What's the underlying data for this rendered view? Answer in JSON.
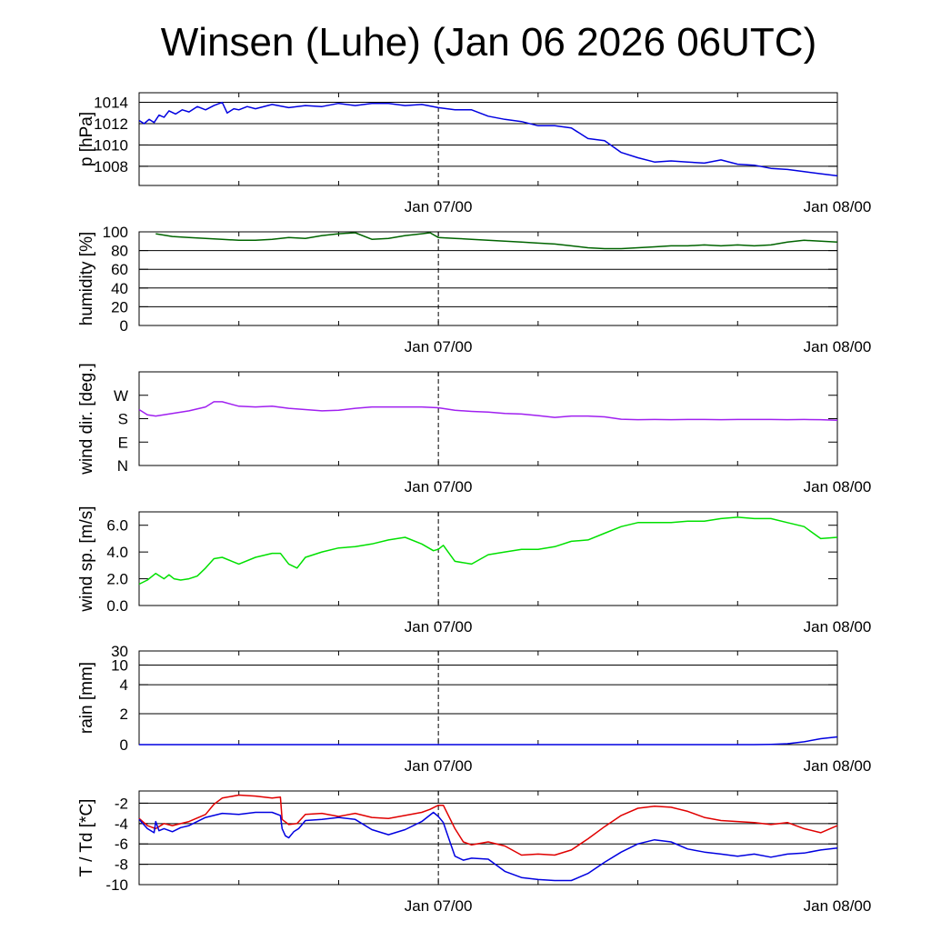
{
  "title": "Winsen (Luhe) (Jan 06 2026 06UTC)",
  "chart_data": [
    {
      "type": "line",
      "ylabel": "p [hPa]",
      "ylim": [
        1006.2,
        1014.9
      ],
      "yticks": [
        {
          "value": 1008,
          "label": "1008"
        },
        {
          "value": 1010,
          "label": "1010"
        },
        {
          "value": 1012,
          "label": "1012"
        },
        {
          "value": 1014,
          "label": "1014"
        }
      ],
      "grid_values": [
        1008,
        1010,
        1012,
        1014
      ],
      "xlim": [
        0,
        42
      ],
      "xticks": [
        {
          "value": 18,
          "label": "Jan 07/00"
        },
        {
          "value": 42,
          "label": "Jan 08/00"
        }
      ],
      "vline": 18,
      "series": [
        {
          "name": "pressure",
          "color": "#0000e0",
          "x": [
            0,
            0.3,
            0.6,
            0.9,
            1.2,
            1.5,
            1.8,
            2.2,
            2.6,
            3.0,
            3.5,
            4.0,
            4.5,
            5.0,
            5.3,
            5.7,
            6.0,
            6.5,
            7.0,
            8.0,
            9.0,
            10.0,
            11.0,
            12.0,
            13.0,
            14.0,
            15.0,
            16.0,
            17.0,
            18.0,
            19.0,
            20.0,
            21.0,
            22.0,
            23.0,
            24.0,
            25.0,
            26.0,
            27.0,
            28.0,
            29.0,
            30.0,
            31.0,
            32.0,
            33.0,
            34.0,
            35.0,
            36.0,
            37.0,
            38.0,
            39.0,
            40.0,
            41.0,
            42.0
          ],
          "y": [
            1012.3,
            1012.0,
            1012.4,
            1012.1,
            1012.8,
            1012.6,
            1013.2,
            1012.9,
            1013.3,
            1013.1,
            1013.6,
            1013.3,
            1013.7,
            1014.0,
            1013.0,
            1013.4,
            1013.3,
            1013.6,
            1013.4,
            1013.8,
            1013.5,
            1013.7,
            1013.6,
            1013.9,
            1013.7,
            1013.9,
            1013.9,
            1013.7,
            1013.8,
            1013.5,
            1013.3,
            1013.3,
            1012.7,
            1012.4,
            1012.2,
            1011.8,
            1011.8,
            1011.6,
            1010.6,
            1010.4,
            1009.3,
            1008.8,
            1008.4,
            1008.5,
            1008.4,
            1008.3,
            1008.6,
            1008.2,
            1008.1,
            1007.8,
            1007.7,
            1007.5,
            1007.3,
            1007.1
          ]
        }
      ]
    },
    {
      "type": "line",
      "ylabel": "humidity [%]",
      "ylim": [
        0,
        100
      ],
      "yticks": [
        {
          "value": 0,
          "label": "0"
        },
        {
          "value": 20,
          "label": "20"
        },
        {
          "value": 40,
          "label": "40"
        },
        {
          "value": 60,
          "label": "60"
        },
        {
          "value": 80,
          "label": "80"
        },
        {
          "value": 100,
          "label": "100"
        }
      ],
      "grid_values": [
        20,
        40,
        60,
        80,
        100
      ],
      "xlim": [
        0,
        42
      ],
      "xticks": [
        {
          "value": 18,
          "label": "Jan 07/00"
        },
        {
          "value": 42,
          "label": "Jan 08/00"
        }
      ],
      "vline": 18,
      "series": [
        {
          "name": "humidity",
          "color": "#006400",
          "x": [
            1,
            2,
            3,
            4,
            5,
            6,
            7,
            8,
            9,
            10,
            11,
            12,
            13,
            14,
            15,
            16,
            17,
            17.5,
            18,
            19,
            20,
            21,
            22,
            23,
            24,
            25,
            26,
            27,
            28,
            29,
            30,
            31,
            32,
            33,
            34,
            35,
            36,
            37,
            38,
            39,
            40,
            41,
            42
          ],
          "y": [
            98,
            95,
            94,
            93,
            92,
            91,
            91,
            92,
            94,
            93,
            96,
            98,
            99,
            92,
            93,
            96,
            98,
            99,
            94,
            93,
            92,
            91,
            90,
            89,
            88,
            87,
            85,
            83,
            82,
            82,
            83,
            84,
            85,
            85,
            86,
            85,
            86,
            85,
            86,
            89,
            91,
            90,
            89
          ]
        }
      ]
    },
    {
      "type": "line",
      "ylabel": "wind dir. [deg.]",
      "ylim": [
        0,
        360
      ],
      "yticks": [
        {
          "value": 0,
          "label": "N"
        },
        {
          "value": 90,
          "label": "E"
        },
        {
          "value": 180,
          "label": "S"
        },
        {
          "value": 270,
          "label": "W"
        }
      ],
      "grid_values": [],
      "xlim": [
        0,
        42
      ],
      "xticks": [
        {
          "value": 18,
          "label": "Jan 07/00"
        },
        {
          "value": 42,
          "label": "Jan 08/00"
        }
      ],
      "vline": 18,
      "series": [
        {
          "name": "wind direction",
          "color": "#a020f0",
          "x": [
            0,
            0.5,
            1,
            2,
            3,
            4,
            4.5,
            5,
            6,
            7,
            8,
            9,
            10,
            11,
            12,
            13,
            14,
            15,
            16,
            17,
            18,
            19,
            20,
            21,
            22,
            23,
            24,
            25,
            26,
            27,
            28,
            29,
            30,
            31,
            32,
            33,
            34,
            35,
            36,
            37,
            38,
            39,
            40,
            41,
            42
          ],
          "y": [
            215,
            195,
            190,
            200,
            210,
            225,
            245,
            245,
            228,
            225,
            228,
            220,
            215,
            210,
            212,
            220,
            225,
            225,
            225,
            225,
            222,
            212,
            208,
            205,
            200,
            198,
            192,
            185,
            190,
            190,
            187,
            178,
            176,
            177,
            176,
            177,
            177,
            176,
            177,
            177,
            177,
            176,
            177,
            176,
            174
          ]
        }
      ]
    },
    {
      "type": "line",
      "ylabel": "wind sp. [m/s]",
      "ylim": [
        0,
        7.0
      ],
      "yticks": [
        {
          "value": 0,
          "label": "0.0"
        },
        {
          "value": 2,
          "label": "2.0"
        },
        {
          "value": 4,
          "label": "4.0"
        },
        {
          "value": 6,
          "label": "6.0"
        }
      ],
      "grid_values": [],
      "xlim": [
        0,
        42
      ],
      "xticks": [
        {
          "value": 18,
          "label": "Jan 07/00"
        },
        {
          "value": 42,
          "label": "Jan 08/00"
        }
      ],
      "vline": 18,
      "series": [
        {
          "name": "wind speed",
          "color": "#00e000",
          "x": [
            0,
            0.5,
            1.0,
            1.5,
            1.8,
            2.1,
            2.5,
            3,
            3.5,
            4,
            4.5,
            5,
            6,
            7,
            8,
            8.5,
            9,
            9.5,
            10,
            11,
            12,
            13,
            14,
            15,
            16,
            17,
            17.7,
            18,
            18.3,
            19,
            20,
            21,
            22,
            23,
            24,
            25,
            26,
            27,
            28,
            29,
            30,
            31,
            32,
            33,
            34,
            35,
            36,
            37,
            38,
            39,
            40,
            41,
            42
          ],
          "y": [
            1.6,
            1.9,
            2.4,
            2.0,
            2.3,
            2.0,
            1.9,
            2.0,
            2.2,
            2.8,
            3.5,
            3.6,
            3.1,
            3.6,
            3.9,
            3.9,
            3.1,
            2.8,
            3.6,
            4.0,
            4.3,
            4.4,
            4.6,
            4.9,
            5.1,
            4.6,
            4.1,
            4.2,
            4.5,
            3.3,
            3.1,
            3.8,
            4.0,
            4.2,
            4.2,
            4.4,
            4.8,
            4.9,
            5.4,
            5.9,
            6.2,
            6.2,
            6.2,
            6.3,
            6.3,
            6.5,
            6.6,
            6.5,
            6.5,
            6.2,
            5.9,
            5.0,
            5.1
          ]
        }
      ]
    },
    {
      "type": "line",
      "ylabel": "rain [mm]",
      "ylim": [
        0,
        30
      ],
      "ytick_scale": [
        [
          0,
          0
        ],
        [
          2,
          0.33
        ],
        [
          4,
          0.64
        ],
        [
          10,
          0.85
        ],
        [
          30,
          1.0
        ]
      ],
      "yticks": [
        {
          "value": 0,
          "label": "0"
        },
        {
          "value": 2,
          "label": "2"
        },
        {
          "value": 4,
          "label": "4"
        },
        {
          "value": 10,
          "label": "10"
        },
        {
          "value": 30,
          "label": "30"
        }
      ],
      "grid_values": [
        2,
        4,
        10,
        30
      ],
      "xlim": [
        0,
        42
      ],
      "xticks": [
        {
          "value": 18,
          "label": "Jan 07/00"
        },
        {
          "value": 42,
          "label": "Jan 08/00"
        }
      ],
      "vline": 18,
      "series": [
        {
          "name": "rain",
          "color": "#0000e0",
          "x": [
            0,
            37,
            38,
            39,
            40,
            41,
            42
          ],
          "y": [
            0,
            0,
            0.02,
            0.06,
            0.18,
            0.38,
            0.5
          ]
        }
      ]
    },
    {
      "type": "line",
      "ylabel": "T / Td [*C]",
      "ylim": [
        -10,
        -0.8
      ],
      "yticks": [
        {
          "value": -10,
          "label": "-10"
        },
        {
          "value": -8,
          "label": "-8"
        },
        {
          "value": -6,
          "label": "-6"
        },
        {
          "value": -4,
          "label": "-4"
        },
        {
          "value": -2,
          "label": "-2"
        }
      ],
      "grid_values": [
        -10,
        -8,
        -6,
        -4,
        -2
      ],
      "xlim": [
        0,
        42
      ],
      "xticks": [
        {
          "value": 18,
          "label": "Jan 07/00"
        },
        {
          "value": 42,
          "label": "Jan 08/00"
        }
      ],
      "vline": 18,
      "series": [
        {
          "name": "T",
          "color": "#e00000",
          "x": [
            0,
            0.5,
            1,
            1.5,
            2,
            3,
            4,
            4.5,
            5,
            6,
            7,
            8,
            8.5,
            8.6,
            9,
            9.5,
            10,
            11,
            12,
            13,
            14,
            15,
            16,
            17,
            17.5,
            18,
            18.3,
            19,
            19.5,
            20,
            21,
            22,
            23,
            24,
            25,
            26,
            27,
            28,
            29,
            30,
            31,
            32,
            33,
            34,
            35,
            36,
            37,
            38,
            39,
            40,
            41,
            42
          ],
          "y": [
            -3.5,
            -4.2,
            -4.5,
            -4.0,
            -4.2,
            -3.8,
            -3.1,
            -2.1,
            -1.5,
            -1.2,
            -1.3,
            -1.5,
            -1.4,
            -3.6,
            -4.1,
            -4.0,
            -3.1,
            -3.0,
            -3.3,
            -3.0,
            -3.4,
            -3.5,
            -3.2,
            -2.9,
            -2.6,
            -2.2,
            -2.2,
            -4.5,
            -5.8,
            -6.1,
            -5.8,
            -6.2,
            -7.1,
            -7.0,
            -7.1,
            -6.6,
            -5.5,
            -4.3,
            -3.2,
            -2.5,
            -2.3,
            -2.4,
            -2.8,
            -3.4,
            -3.7,
            -3.8,
            -3.9,
            -4.1,
            -3.9,
            -4.5,
            -4.9,
            -4.2
          ]
        },
        {
          "name": "Td",
          "color": "#0000e0",
          "x": [
            0,
            0.5,
            0.9,
            1.0,
            1.2,
            1.5,
            2,
            2.5,
            3,
            4,
            5,
            6,
            7,
            8,
            8.5,
            8.6,
            8.8,
            9.0,
            9.3,
            9.6,
            10,
            11,
            12,
            13,
            14,
            15,
            16,
            17,
            17.7,
            18,
            18.3,
            18.7,
            19.0,
            19.5,
            20,
            21,
            22,
            23,
            24,
            25,
            26,
            27,
            28,
            29,
            30,
            31,
            32,
            33,
            34,
            35,
            36,
            37,
            38,
            39,
            40,
            41,
            42
          ],
          "y": [
            -3.6,
            -4.5,
            -4.9,
            -3.8,
            -4.7,
            -4.5,
            -4.8,
            -4.4,
            -4.2,
            -3.4,
            -3.0,
            -3.1,
            -2.9,
            -2.9,
            -3.2,
            -4.5,
            -5.2,
            -5.4,
            -4.8,
            -4.5,
            -3.7,
            -3.6,
            -3.4,
            -3.6,
            -4.6,
            -5.1,
            -4.6,
            -3.8,
            -2.9,
            -3.3,
            -3.9,
            -5.8,
            -7.2,
            -7.6,
            -7.4,
            -7.5,
            -8.7,
            -9.3,
            -9.5,
            -9.6,
            -9.6,
            -8.9,
            -7.8,
            -6.8,
            -6.0,
            -5.6,
            -5.8,
            -6.5,
            -6.8,
            -7.0,
            -7.2,
            -7.0,
            -7.3,
            -7.0,
            -6.9,
            -6.6,
            -6.4
          ]
        }
      ]
    }
  ]
}
